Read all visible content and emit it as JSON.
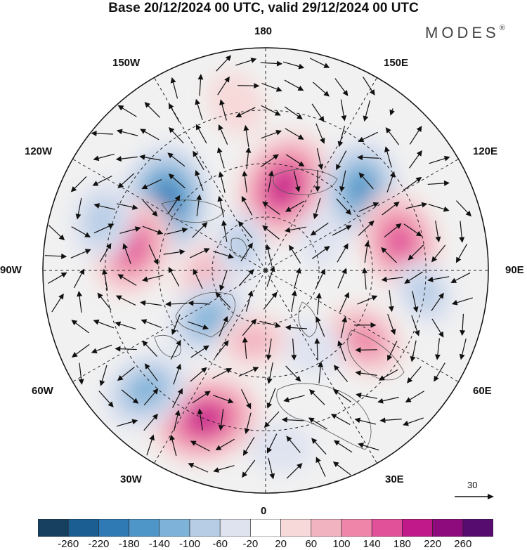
{
  "title": "Base 20/12/2024 00 UTC, valid 29/12/2024 00 UTC",
  "brand": "MODES",
  "brand_mark": "®",
  "lon_labels": {
    "top": "180",
    "bottom": "0",
    "left": "90W",
    "right": "90E",
    "ul30": "150W",
    "ul60": "120W",
    "ur30": "150E",
    "ur60": "120E",
    "ll30": "30W",
    "ll60": "60W",
    "lr30": "30E",
    "lr60": "60E"
  },
  "ref_vector": "30",
  "colorbar": {
    "ticks": [
      "-260",
      "-220",
      "-180",
      "-140",
      "-100",
      "-60",
      "-20",
      "20",
      "60",
      "100",
      "140",
      "180",
      "220",
      "260"
    ],
    "colors": [
      "#173f5f",
      "#1b5e91",
      "#2f79b5",
      "#4f96c8",
      "#7eb2d8",
      "#b7cde6",
      "#dfe3f0",
      "#ffffff",
      "#f7d9d9",
      "#f2b3c0",
      "#ef86a9",
      "#e0519a",
      "#c1198a",
      "#8e0b7d",
      "#560b6e"
    ]
  },
  "anomaly_cells": [
    {
      "lon": 168,
      "colat": 48,
      "value": 230
    },
    {
      "lon": -125,
      "colat": 68,
      "value": -230
    },
    {
      "lon": -100,
      "colat": 76,
      "value": 180
    },
    {
      "lon": -107,
      "colat": 96,
      "value": -110
    },
    {
      "lon": -170,
      "colat": 95,
      "value": 70
    },
    {
      "lon": 130,
      "colat": 70,
      "value": -190
    },
    {
      "lon": 102,
      "colat": 77,
      "value": 190
    },
    {
      "lon": 105,
      "colat": 100,
      "value": 30
    },
    {
      "lon": 82,
      "colat": 90,
      "value": -80
    },
    {
      "lon": 55,
      "colat": 68,
      "value": 130
    },
    {
      "lon": 30,
      "colat": 50,
      "value": -70
    },
    {
      "lon": -22,
      "colat": 90,
      "value": 220
    },
    {
      "lon": -45,
      "colat": 95,
      "value": -150
    },
    {
      "lon": -85,
      "colat": 32,
      "value": 110
    },
    {
      "lon": -50,
      "colat": 42,
      "value": -140
    },
    {
      "lon": -135,
      "colat": 20,
      "value": -80
    },
    {
      "lon": -10,
      "colat": 40,
      "value": 80
    },
    {
      "lon": 5,
      "colat": 100,
      "value": -60
    },
    {
      "lon": 120,
      "colat": 35,
      "value": -40
    }
  ]
}
